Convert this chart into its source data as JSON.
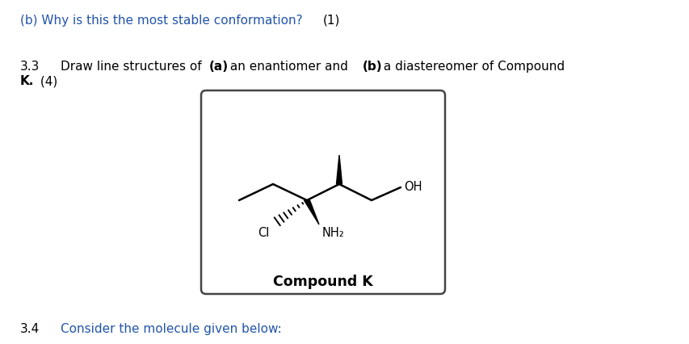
{
  "background_color": "#ffffff",
  "text_color": "#000000",
  "blue_color": "#2255aa",
  "line1_blue": "(b) Why is this the most stable conformation?",
  "line1_black": "(1)",
  "line2_num": "3.3",
  "line4_num": "3.4",
  "line4_text": "Consider the molecule given below:",
  "compound_label": "Compound K",
  "fs_main": 11.0,
  "fs_chem": 10.5
}
